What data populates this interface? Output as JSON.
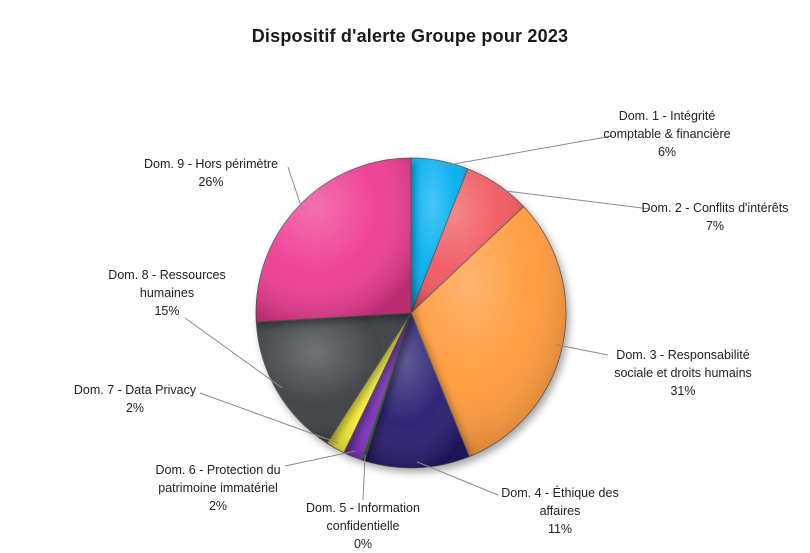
{
  "chart_data": {
    "type": "pie",
    "title": "Dispositif d'alerte Groupe pour 2023",
    "slices": [
      {
        "lines": [
          "Dom. 1 - Intégrité",
          "comptable & financière"
        ],
        "pct": "6%",
        "value": 6,
        "color": "#00B0F0"
      },
      {
        "lines": [
          "Dom. 2 - Conflits d'intérêts"
        ],
        "pct": "7%",
        "value": 7,
        "color": "#F0585E"
      },
      {
        "lines": [
          "Dom. 3 - Responsabilité",
          "sociale et droits humains"
        ],
        "pct": "31%",
        "value": 31,
        "color": "#FF9838"
      },
      {
        "lines": [
          "Dom. 4 - Éthique des",
          "affaires"
        ],
        "pct": "11%",
        "value": 11,
        "color": "#251B6E"
      },
      {
        "lines": [
          "Dom. 5 - Information",
          "confidentielle"
        ],
        "pct": "0%",
        "value": 0.3,
        "color": "#2E7D32"
      },
      {
        "lines": [
          "Dom. 6 - Protection du",
          "patrimoine immatériel"
        ],
        "pct": "2%",
        "value": 2,
        "color": "#7B2FBE"
      },
      {
        "lines": [
          "Dom. 7 - Data Privacy"
        ],
        "pct": "2%",
        "value": 2,
        "color": "#F8F032"
      },
      {
        "lines": [
          "Dom. 8 - Ressources",
          "humaines"
        ],
        "pct": "15%",
        "value": 15,
        "color": "#393D40"
      },
      {
        "lines": [
          "Dom. 9 - Hors périmètre"
        ],
        "pct": "26%",
        "value": 26,
        "color": "#EE3A91"
      }
    ]
  }
}
